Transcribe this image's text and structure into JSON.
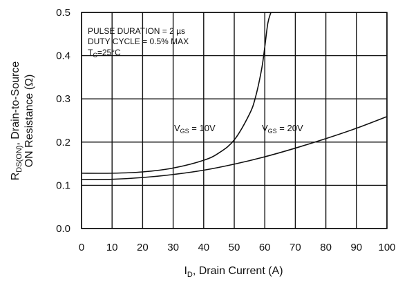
{
  "chart_data": {
    "type": "line",
    "xlabel": {
      "main": "I",
      "sub": "D",
      "rest": ", Drain Current (A)"
    },
    "ylabel": {
      "line1": {
        "pre": "R",
        "sub": "DS(ON)",
        "post": ", Drain-to-Source"
      },
      "line2": "ON Resistance (Ω)"
    },
    "xlim": [
      0,
      100
    ],
    "ylim": [
      0,
      0.5
    ],
    "x_ticks": [
      0,
      10,
      20,
      30,
      40,
      50,
      60,
      70,
      80,
      90,
      100
    ],
    "x_tick_labels": [
      "0",
      "10",
      "20",
      "30",
      "40",
      "50",
      "60",
      "70",
      "80",
      "90",
      "100"
    ],
    "y_ticks": [
      0,
      0.1,
      0.2,
      0.3,
      0.4,
      0.5
    ],
    "y_tick_labels": [
      "0.0",
      "0.1",
      "0.2",
      "0.3",
      "0.4",
      "0.5"
    ],
    "grid": true,
    "annotations": {
      "line1": "PULSE DURATION = 2 µs",
      "line2": "DUTY CYCLE = 0.5% MAX",
      "line3": {
        "pre": "T",
        "sub": "C",
        "post": "=25°C"
      }
    },
    "series": [
      {
        "label": {
          "pre": "V",
          "sub": "GS",
          "post": " = 10V"
        },
        "x": [
          0,
          10,
          20,
          30,
          40,
          45,
          50,
          55,
          57,
          59,
          60,
          61,
          62
        ],
        "y": [
          0.128,
          0.128,
          0.131,
          0.14,
          0.158,
          0.175,
          0.205,
          0.265,
          0.305,
          0.37,
          0.42,
          0.475,
          0.5
        ]
      },
      {
        "label": {
          "pre": "V",
          "sub": "GS",
          "post": " = 20V"
        },
        "x": [
          0,
          10,
          20,
          30,
          40,
          50,
          60,
          70,
          80,
          90,
          100
        ],
        "y": [
          0.113,
          0.114,
          0.118,
          0.125,
          0.135,
          0.149,
          0.166,
          0.186,
          0.208,
          0.232,
          0.259
        ]
      }
    ]
  }
}
